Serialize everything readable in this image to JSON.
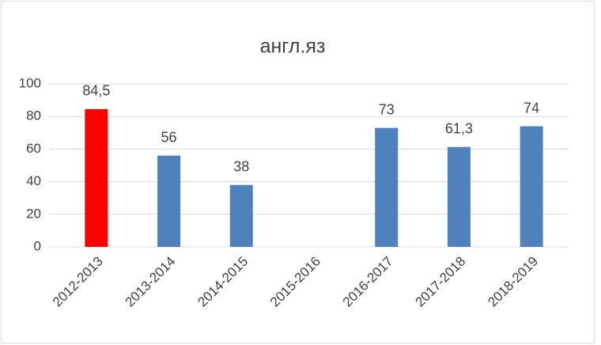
{
  "chart_data": {
    "type": "bar",
    "title": "англ.яз",
    "categories": [
      "2012-2013",
      "2013-2014",
      "2014-2015",
      "2015-2016",
      "2016-2017",
      "2017-2018",
      "2018-2019"
    ],
    "values": [
      84.5,
      56,
      38,
      null,
      73,
      61.3,
      74
    ],
    "value_labels": [
      "84,5",
      "56",
      "38",
      null,
      "73",
      "61,3",
      "74"
    ],
    "colors": [
      "#ff0000",
      "#4f81bd",
      "#4f81bd",
      "#4f81bd",
      "#4f81bd",
      "#4f81bd",
      "#4f81bd"
    ],
    "ylim": [
      0,
      100
    ],
    "yticks": [
      0,
      20,
      40,
      60,
      80,
      100
    ],
    "grid": true
  }
}
